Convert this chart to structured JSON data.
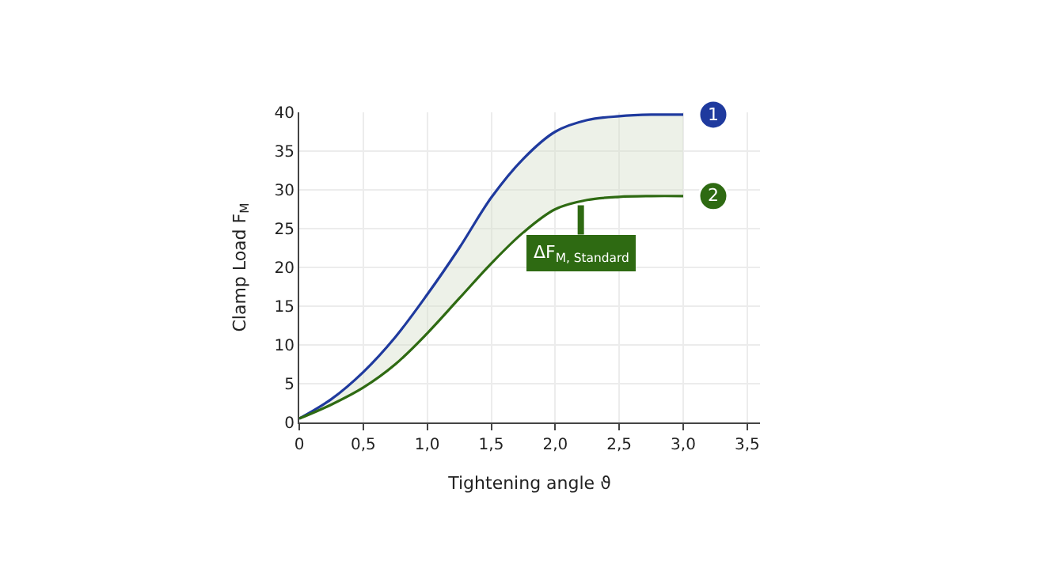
{
  "chart_data": {
    "type": "line",
    "xlabel": "Tightening angle ϑ",
    "ylabel": "Clamp Load F$_{M}$",
    "x": [
      0,
      0.25,
      0.5,
      0.75,
      1.0,
      1.25,
      1.5,
      1.75,
      2.0,
      2.25,
      2.5,
      2.75,
      3.0
    ],
    "series": [
      {
        "name": "1",
        "color": "#1f3a9e",
        "values": [
          0.5,
          3,
          6.5,
          11,
          16.5,
          22.5,
          29,
          34,
          37.5,
          39,
          39.5,
          39.7,
          39.7
        ],
        "lower": [
          0.5,
          2.3,
          4.5,
          7.5,
          11.5,
          16,
          20.5,
          24.5,
          27.5,
          28.7,
          29.1,
          29.2,
          29.2
        ],
        "upper": [
          0.5,
          3,
          6.5,
          11,
          16.5,
          22.5,
          29,
          34,
          37.5,
          39,
          39.5,
          39.7,
          39.7
        ]
      },
      {
        "name": "2",
        "color": "#2e6a12",
        "values": [
          0.5,
          2.3,
          4.5,
          7.5,
          11.5,
          16,
          20.5,
          24.5,
          27.5,
          28.7,
          29.1,
          29.2,
          29.2
        ]
      }
    ],
    "annotations": [
      {
        "text": "ΔF$_{M, Standard}$",
        "x": 2.2,
        "y": 28
      }
    ],
    "xlim": [
      0,
      3.6
    ],
    "ylim": [
      0,
      40
    ],
    "xticks": [
      0,
      {
        "value": 0.5,
        "label": "0,5"
      },
      {
        "value": 1.0,
        "label": "1,0"
      },
      {
        "value": 1.5,
        "label": "1,5"
      },
      {
        "value": 2.0,
        "label": "2,0"
      },
      {
        "value": 2.5,
        "label": "2,5"
      },
      {
        "value": 3.0,
        "label": "3,0"
      },
      {
        "value": 3.5,
        "label": "3,5"
      }
    ],
    "yticks": [
      0,
      5,
      10,
      15,
      20,
      25,
      30,
      35,
      40
    ],
    "grid": true,
    "marker": "none",
    "line_style": "solid"
  }
}
